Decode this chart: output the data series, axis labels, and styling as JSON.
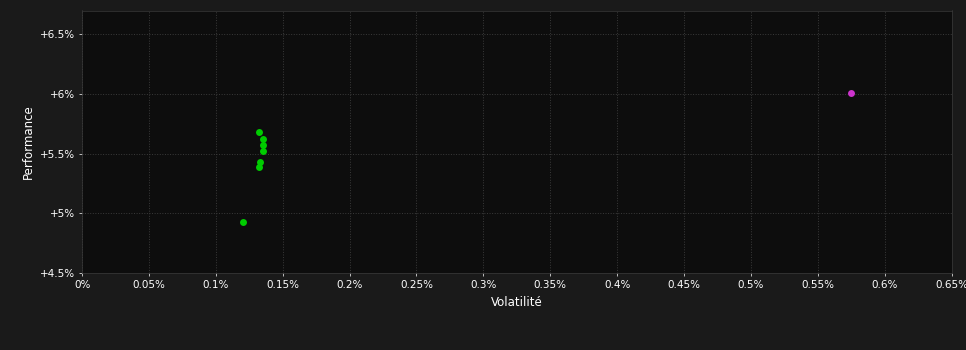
{
  "background_color": "#1a1a1a",
  "plot_bg_color": "#0d0d0d",
  "grid_color": "#3a3a3a",
  "text_color": "#ffffff",
  "xlabel": "Volatilité",
  "ylabel": "Performance",
  "xlim": [
    0.0,
    0.0065
  ],
  "ylim": [
    0.045,
    0.067
  ],
  "x_ticks": [
    0.0,
    0.0005,
    0.001,
    0.0015,
    0.002,
    0.0025,
    0.003,
    0.0035,
    0.004,
    0.0045,
    0.005,
    0.0055,
    0.006,
    0.0065
  ],
  "x_tick_labels": [
    "0%",
    "0.05%",
    "0.1%",
    "0.15%",
    "0.2%",
    "0.25%",
    "0.3%",
    "0.35%",
    "0.4%",
    "0.45%",
    "0.5%",
    "0.55%",
    "0.6%",
    "0.65%"
  ],
  "y_ticks": [
    0.045,
    0.05,
    0.055,
    0.06,
    0.065
  ],
  "y_tick_labels": [
    "+4.5%",
    "+5%",
    "+5.5%",
    "+6%",
    "+6.5%"
  ],
  "green_points": [
    [
      0.00132,
      0.0568
    ],
    [
      0.00135,
      0.0562
    ],
    [
      0.00135,
      0.0557
    ],
    [
      0.00135,
      0.0552
    ],
    [
      0.00133,
      0.0543
    ],
    [
      0.00132,
      0.0539
    ],
    [
      0.0012,
      0.0493
    ]
  ],
  "magenta_points": [
    [
      0.00575,
      0.0601
    ]
  ],
  "green_color": "#00cc00",
  "magenta_color": "#cc33cc",
  "point_size": 25
}
